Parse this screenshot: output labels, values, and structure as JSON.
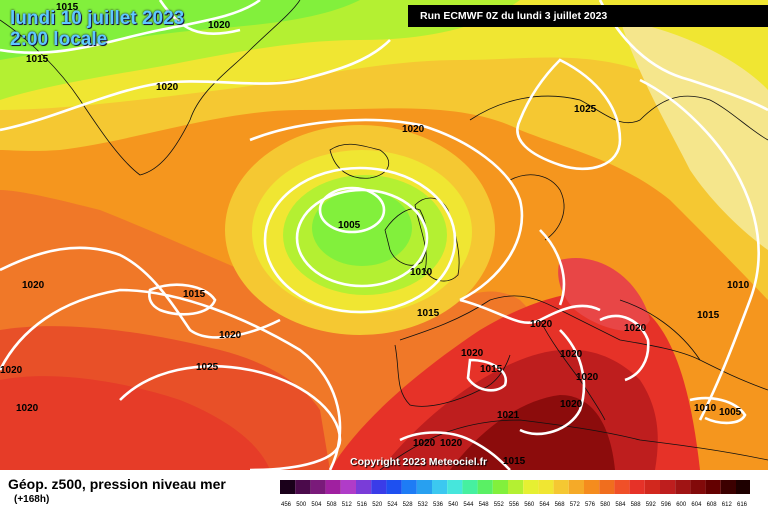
{
  "header": {
    "date_line": "lundi 10 juillet 2023",
    "time_line": "2:00 locale",
    "run_label": "Run ECMWF 0Z du lundi 3 juillet 2023"
  },
  "copyright": "Copyright 2023 Meteociel.fr",
  "footer": {
    "title": "Géop. z500, pression niveau mer",
    "subtitle": "(+168h)"
  },
  "legend": {
    "ticks": [
      "456",
      "500",
      "504",
      "508",
      "512",
      "516",
      "520",
      "524",
      "528",
      "532",
      "536",
      "540",
      "544",
      "548",
      "552",
      "556",
      "560",
      "564",
      "568",
      "572",
      "576",
      "580",
      "584",
      "588",
      "592",
      "596",
      "600",
      "604",
      "608",
      "612",
      "616"
    ],
    "colors": [
      "#1a001a",
      "#4b0a4b",
      "#7a1a7a",
      "#a020a0",
      "#b03cc8",
      "#7a3cd8",
      "#3a3ce8",
      "#1e50f0",
      "#1e7cf5",
      "#28a0f0",
      "#3cc8f0",
      "#46e6dc",
      "#46f0a0",
      "#5af064",
      "#82f03c",
      "#b4f032",
      "#e6f032",
      "#f0e632",
      "#f5c832",
      "#f5aa28",
      "#f58c1e",
      "#f06e1e",
      "#f05028",
      "#e63228",
      "#d2281e",
      "#be1e1e",
      "#a01414",
      "#820a0a",
      "#640000",
      "#3c0000",
      "#1e0000"
    ]
  },
  "isobars": [
    {
      "value": "1015",
      "label": "1015"
    },
    {
      "value": "1020",
      "label": "1020"
    },
    {
      "value": "1015",
      "label": "1015"
    },
    {
      "value": "1020",
      "label": "1020"
    },
    {
      "value": "1020",
      "label": "1020"
    },
    {
      "value": "1025",
      "label": "1025"
    },
    {
      "value": "1005",
      "label": "1005"
    },
    {
      "value": "1010",
      "label": "1010"
    },
    {
      "value": "1015",
      "label": "1015"
    },
    {
      "value": "1020",
      "label": "1020"
    },
    {
      "value": "1015",
      "label": "1015"
    },
    {
      "value": "1020",
      "label": "1020"
    },
    {
      "value": "1025",
      "label": "1025"
    },
    {
      "value": "1020",
      "label": "1020"
    },
    {
      "value": "1020",
      "label": "1020"
    },
    {
      "value": "1020",
      "label": "1020"
    },
    {
      "value": "1020",
      "label": "1020"
    },
    {
      "value": "1015",
      "label": "1015"
    },
    {
      "value": "1020",
      "label": "1020"
    },
    {
      "value": "1020",
      "label": "1020"
    },
    {
      "value": "1020",
      "label": "1020"
    },
    {
      "value": "1020",
      "label": "1020"
    },
    {
      "value": "1015",
      "label": "1015"
    },
    {
      "value": "1010",
      "label": "1010"
    },
    {
      "value": "1015",
      "label": "1015"
    },
    {
      "value": "1010",
      "label": "1010"
    },
    {
      "value": "1005",
      "label": "1005"
    },
    {
      "value": "1020",
      "label": "1020"
    },
    {
      "value": "1020",
      "label": "1020"
    },
    {
      "value": "1021",
      "label": "1021"
    }
  ]
}
